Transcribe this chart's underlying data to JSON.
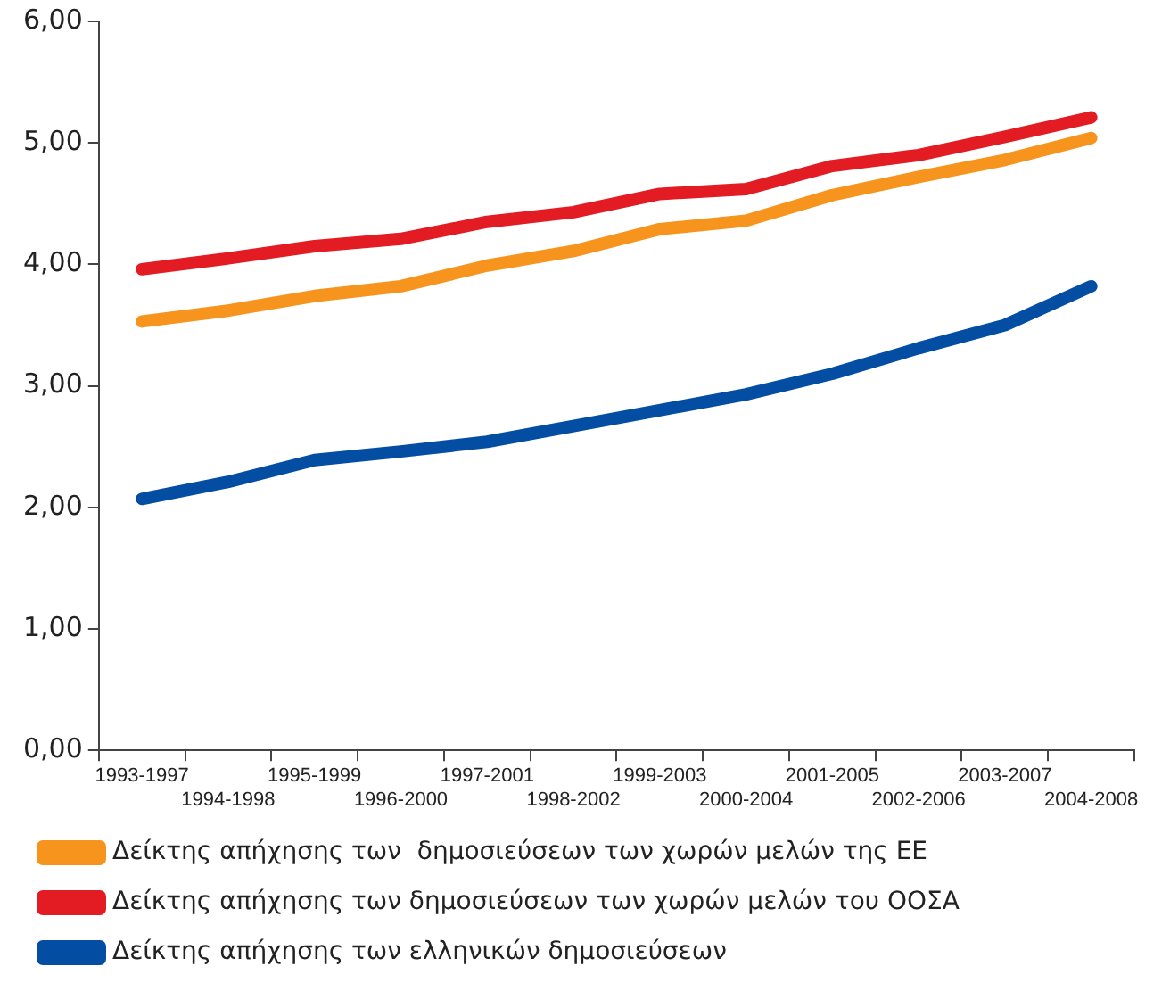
{
  "chart_data": {
    "type": "line",
    "categories": [
      "1993-1997",
      "1994-1998",
      "1995-1999",
      "1996-2000",
      "1997-2001",
      "1998-2002",
      "1999-2003",
      "2000-2004",
      "2001-2005",
      "2002-2006",
      "2003-2007",
      "2004-2008"
    ],
    "series": [
      {
        "name": "Δείκτης απήχησης των  δημοσιεύσεων των χωρών μελών της ΕΕ",
        "color": "#f7941d",
        "values": [
          3.53,
          3.62,
          3.74,
          3.82,
          3.99,
          4.11,
          4.29,
          4.36,
          4.57,
          4.72,
          4.86,
          5.04
        ]
      },
      {
        "name": "Δείκτης απήχησης των δημοσιεύσεων των χωρών μελών του ΟΟΣΑ",
        "color": "#e31b23",
        "values": [
          3.96,
          4.05,
          4.15,
          4.21,
          4.35,
          4.43,
          4.58,
          4.62,
          4.81,
          4.9,
          5.05,
          5.21
        ]
      },
      {
        "name": "Δείκτης απήχησης των ελληνικών δημοσιεύσεων",
        "color": "#034ea2",
        "values": [
          2.07,
          2.21,
          2.39,
          2.46,
          2.54,
          2.67,
          2.8,
          2.93,
          3.1,
          3.31,
          3.5,
          3.82
        ]
      }
    ],
    "ylim": [
      0,
      6
    ],
    "yticks": [
      {
        "value": 0,
        "label": "0,00"
      },
      {
        "value": 1,
        "label": "1,00"
      },
      {
        "value": 2,
        "label": "2,00"
      },
      {
        "value": 3,
        "label": "3,00"
      },
      {
        "value": 4,
        "label": "4,00"
      },
      {
        "value": 5,
        "label": "5,00"
      },
      {
        "value": 6,
        "label": "6,00"
      }
    ],
    "grid": false,
    "legend": "bottom",
    "marker": "none",
    "line_style": "solid"
  }
}
